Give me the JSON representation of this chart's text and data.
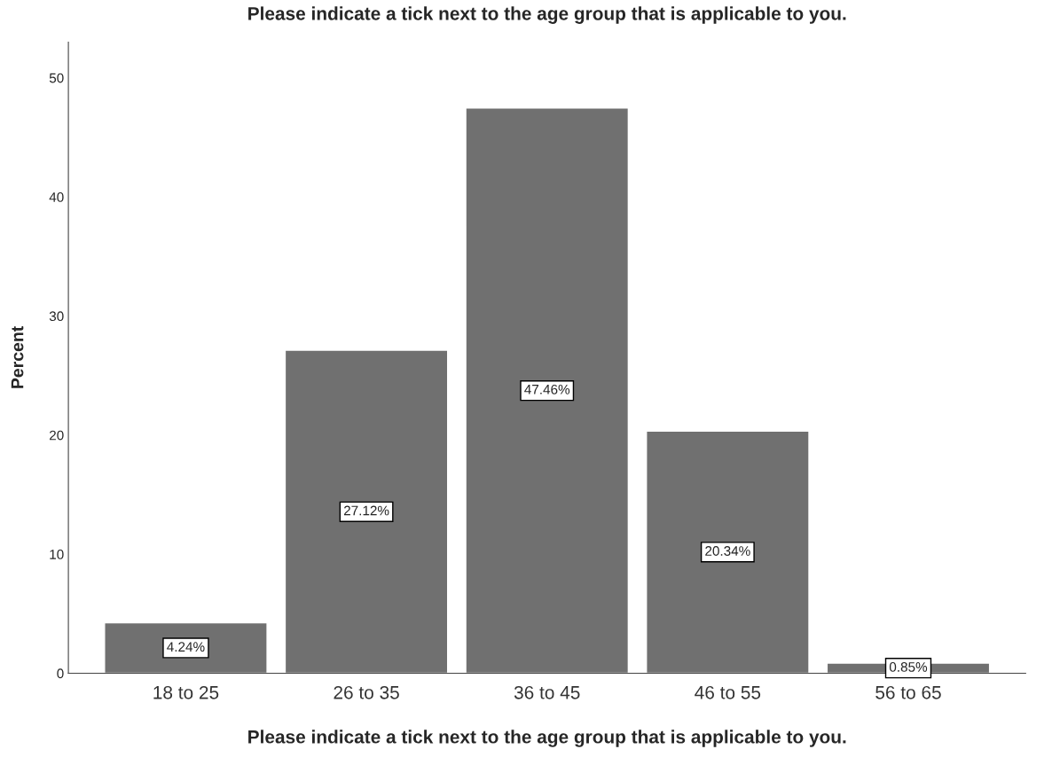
{
  "chart_data": {
    "type": "bar",
    "title": "Please indicate a tick next to the age group that is applicable to you.",
    "xlabel": "Please indicate a tick next to the age group that is applicable to you.",
    "ylabel": "Percent",
    "categories": [
      "18 to 25",
      "26 to 35",
      "36 to 45",
      "46 to 55",
      "56 to 65"
    ],
    "values": [
      4.24,
      27.12,
      47.46,
      20.34,
      0.85
    ],
    "value_labels": [
      "4.24%",
      "27.12%",
      "47.46%",
      "20.34%",
      "0.85%"
    ],
    "color": "#707070",
    "ylim": [
      0,
      53
    ],
    "yticks": [
      0,
      10,
      20,
      30,
      40,
      50
    ],
    "grid": false
  }
}
